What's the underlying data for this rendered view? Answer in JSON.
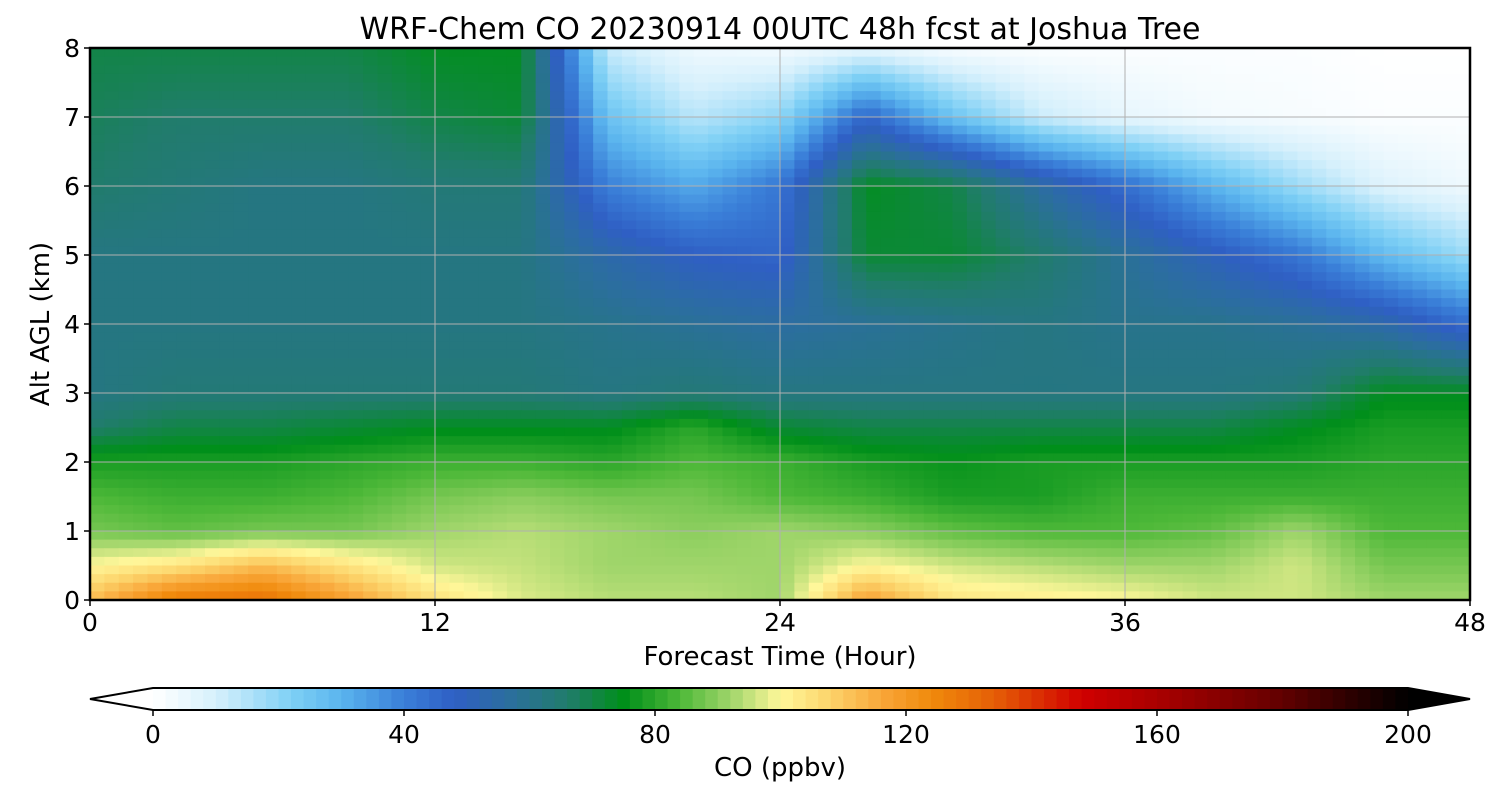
{
  "chart_data": {
    "type": "heatmap",
    "title": "WRF-Chem CO  20230914 00UTC 48h fcst at Joshua Tree",
    "xlabel": "Forecast Time (Hour)",
    "ylabel": "Alt AGL (km)",
    "xlim": [
      0,
      48
    ],
    "ylim": [
      0,
      8
    ],
    "xticks": [
      0,
      12,
      24,
      36,
      48
    ],
    "yticks": [
      0,
      1,
      2,
      3,
      4,
      5,
      6,
      7,
      8
    ],
    "grid": true,
    "colorbar": {
      "label": "CO  (ppbv)",
      "range": [
        0,
        200
      ],
      "ticks": [
        0,
        40,
        80,
        120,
        160,
        200
      ],
      "extend": "both",
      "orientation": "horizontal",
      "color_stops": [
        {
          "v": 0,
          "c": "#ffffff"
        },
        {
          "v": 10,
          "c": "#d6f0fc"
        },
        {
          "v": 22,
          "c": "#7fd0f5"
        },
        {
          "v": 30,
          "c": "#5ab4ee"
        },
        {
          "v": 40,
          "c": "#3a7fd8"
        },
        {
          "v": 48,
          "c": "#2f5fc4"
        },
        {
          "v": 57,
          "c": "#2b6f9c"
        },
        {
          "v": 66,
          "c": "#217c6c"
        },
        {
          "v": 75,
          "c": "#008f1a"
        },
        {
          "v": 84,
          "c": "#4db838"
        },
        {
          "v": 92,
          "c": "#9fd56a"
        },
        {
          "v": 100,
          "c": "#fff79a"
        },
        {
          "v": 108,
          "c": "#fcd36a"
        },
        {
          "v": 116,
          "c": "#f9a73a"
        },
        {
          "v": 124,
          "c": "#f08a0c"
        },
        {
          "v": 134,
          "c": "#e55f06"
        },
        {
          "v": 148,
          "c": "#d00000"
        },
        {
          "v": 162,
          "c": "#a30000"
        },
        {
          "v": 178,
          "c": "#6a0000"
        },
        {
          "v": 190,
          "c": "#300000"
        },
        {
          "v": 200,
          "c": "#000000"
        }
      ]
    },
    "z_hours": [
      0,
      3,
      6,
      9,
      12,
      15,
      18,
      21,
      24,
      27,
      30,
      33,
      36,
      39,
      42,
      45,
      48
    ],
    "z_altitudes_km": [
      0,
      0.5,
      1,
      1.5,
      2,
      2.5,
      3,
      4,
      5,
      6,
      7,
      8
    ],
    "z_values_ppbv": [
      [
        112,
        128,
        130,
        118,
        105,
        97,
        94,
        94,
        92,
        118,
        104,
        102,
        100,
        96,
        96,
        92,
        92
      ],
      [
        100,
        104,
        112,
        104,
        96,
        95,
        92,
        92,
        92,
        100,
        96,
        94,
        92,
        92,
        96,
        88,
        88
      ],
      [
        88,
        86,
        88,
        88,
        92,
        94,
        92,
        90,
        92,
        90,
        86,
        84,
        84,
        86,
        92,
        84,
        84
      ],
      [
        84,
        82,
        82,
        84,
        88,
        90,
        88,
        88,
        84,
        82,
        78,
        78,
        82,
        82,
        82,
        82,
        82
      ],
      [
        78,
        78,
        78,
        80,
        82,
        82,
        80,
        84,
        82,
        78,
        76,
        78,
        78,
        78,
        78,
        80,
        80
      ],
      [
        66,
        70,
        70,
        72,
        74,
        74,
        74,
        80,
        72,
        70,
        70,
        70,
        70,
        70,
        74,
        78,
        78
      ],
      [
        62,
        64,
        64,
        64,
        64,
        64,
        62,
        64,
        62,
        62,
        62,
        62,
        62,
        62,
        64,
        74,
        74
      ],
      [
        62,
        62,
        62,
        62,
        62,
        62,
        60,
        58,
        56,
        58,
        60,
        62,
        60,
        60,
        58,
        54,
        44
      ],
      [
        62,
        62,
        62,
        62,
        62,
        62,
        54,
        48,
        46,
        72,
        72,
        66,
        58,
        50,
        42,
        28,
        18
      ],
      [
        66,
        64,
        62,
        62,
        64,
        64,
        40,
        32,
        42,
        74,
        70,
        56,
        44,
        30,
        18,
        8,
        4
      ],
      [
        68,
        66,
        66,
        66,
        70,
        72,
        26,
        14,
        20,
        46,
        26,
        12,
        6,
        3,
        2,
        1,
        1
      ],
      [
        70,
        70,
        70,
        70,
        74,
        74,
        12,
        4,
        3,
        6,
        2,
        1,
        1,
        1,
        1,
        0,
        0
      ]
    ]
  }
}
